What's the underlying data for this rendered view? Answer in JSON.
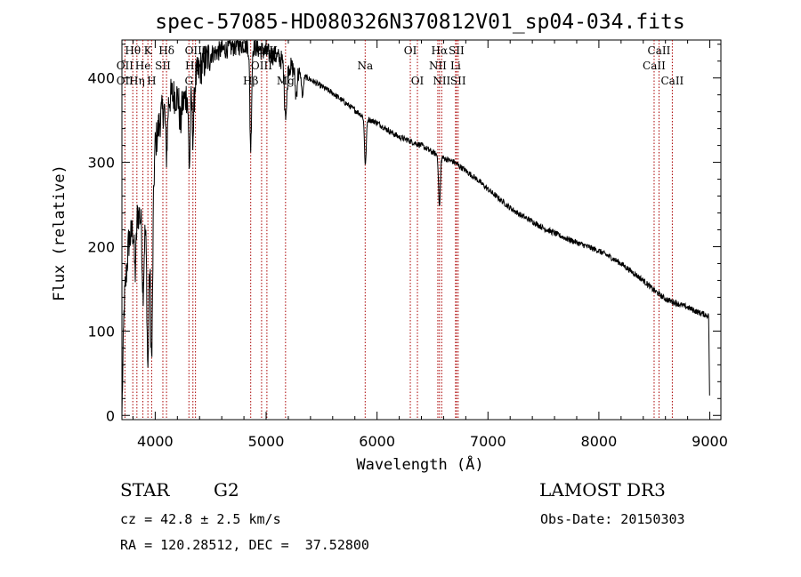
{
  "chart_data": {
    "type": "line",
    "title": "spec-57085-HD080326N370812V01_sp04-034.fits",
    "xlabel": "Wavelength (Å)",
    "ylabel": "Flux (relative)",
    "xlim": [
      3700,
      9100
    ],
    "ylim": [
      -5,
      445
    ],
    "xticks": [
      4000,
      5000,
      6000,
      7000,
      8000,
      9000
    ],
    "yticks": [
      0,
      100,
      200,
      300,
      400
    ],
    "line_color": "#000000",
    "marker_color": "#aa0000",
    "anchors": [
      [
        3700,
        0
      ],
      [
        3720,
        130
      ],
      [
        3760,
        205
      ],
      [
        3800,
        220
      ],
      [
        3840,
        240
      ],
      [
        3880,
        235
      ],
      [
        3920,
        215
      ],
      [
        3960,
        190
      ],
      [
        4000,
        320
      ],
      [
        4050,
        355
      ],
      [
        4100,
        370
      ],
      [
        4150,
        380
      ],
      [
        4200,
        378
      ],
      [
        4250,
        370
      ],
      [
        4300,
        385
      ],
      [
        4350,
        395
      ],
      [
        4400,
        410
      ],
      [
        4450,
        420
      ],
      [
        4500,
        428
      ],
      [
        4600,
        433
      ],
      [
        4700,
        437
      ],
      [
        4800,
        440
      ],
      [
        4900,
        437
      ],
      [
        5000,
        430
      ],
      [
        5100,
        425
      ],
      [
        5200,
        415
      ],
      [
        5300,
        405
      ],
      [
        5400,
        398
      ],
      [
        5500,
        390
      ],
      [
        5600,
        382
      ],
      [
        5700,
        372
      ],
      [
        5800,
        362
      ],
      [
        5900,
        352
      ],
      [
        6000,
        347
      ],
      [
        6100,
        338
      ],
      [
        6200,
        330
      ],
      [
        6300,
        325
      ],
      [
        6400,
        320
      ],
      [
        6500,
        312
      ],
      [
        6600,
        305
      ],
      [
        6700,
        300
      ],
      [
        6800,
        290
      ],
      [
        6900,
        280
      ],
      [
        7000,
        268
      ],
      [
        7100,
        257
      ],
      [
        7200,
        246
      ],
      [
        7300,
        237
      ],
      [
        7400,
        230
      ],
      [
        7500,
        222
      ],
      [
        7600,
        216
      ],
      [
        7700,
        210
      ],
      [
        7800,
        205
      ],
      [
        7900,
        200
      ],
      [
        8000,
        195
      ],
      [
        8100,
        188
      ],
      [
        8200,
        180
      ],
      [
        8300,
        170
      ],
      [
        8400,
        160
      ],
      [
        8500,
        148
      ],
      [
        8600,
        138
      ],
      [
        8700,
        133
      ],
      [
        8800,
        128
      ],
      [
        8900,
        122
      ],
      [
        8990,
        118
      ],
      [
        9000,
        0
      ]
    ],
    "absorption": [
      [
        3820,
        60
      ],
      [
        3890,
        80
      ],
      [
        3934,
        150
      ],
      [
        3969,
        150
      ],
      [
        4102,
        60
      ],
      [
        4227,
        30
      ],
      [
        4308,
        90
      ],
      [
        4341,
        60
      ],
      [
        4861,
        120
      ],
      [
        5169,
        40
      ],
      [
        5183,
        45
      ],
      [
        5270,
        30
      ],
      [
        5328,
        25
      ],
      [
        5895,
        55
      ],
      [
        6563,
        60
      ]
    ],
    "lines": [
      {
        "label": "Hθ",
        "x": 3798,
        "row": 1
      },
      {
        "label": "OII",
        "x": 3727,
        "row": 2
      },
      {
        "label": "OII",
        "x": 3727,
        "row": 3
      },
      {
        "label": "Hη",
        "x": 3835,
        "row": 3
      },
      {
        "label": "He",
        "x": 3889,
        "row": 2
      },
      {
        "label": "K",
        "x": 3934,
        "row": 1
      },
      {
        "label": "H",
        "x": 3968,
        "row": 3
      },
      {
        "label": "SII",
        "x": 4069,
        "row": 2
      },
      {
        "label": "Hδ",
        "x": 4102,
        "row": 1
      },
      {
        "label": "OIII",
        "x": 4363,
        "row": 1
      },
      {
        "label": "Hγ",
        "x": 4340,
        "row": 2
      },
      {
        "label": "G",
        "x": 4304,
        "row": 3
      },
      {
        "label": "OIII",
        "x": 5007,
        "row": 1
      },
      {
        "label": "OIII",
        "x": 4959,
        "row": 2
      },
      {
        "label": "Mg",
        "x": 5175,
        "row": 3
      },
      {
        "label": "Hβ",
        "x": 4861,
        "row": 3
      },
      {
        "label": "Na",
        "x": 5893,
        "row": 2
      },
      {
        "label": "OI",
        "x": 6300,
        "row": 1
      },
      {
        "label": "OI",
        "x": 6364,
        "row": 3
      },
      {
        "label": "Hα",
        "x": 6563,
        "row": 1
      },
      {
        "label": "NII",
        "x": 6548,
        "row": 2
      },
      {
        "label": "NII",
        "x": 6583,
        "row": 3
      },
      {
        "label": "SII",
        "x": 6716,
        "row": 1
      },
      {
        "label": "Li",
        "x": 6708,
        "row": 2
      },
      {
        "label": "SII",
        "x": 6731,
        "row": 3
      },
      {
        "label": "CaII",
        "x": 8542,
        "row": 1
      },
      {
        "label": "CaII",
        "x": 8498,
        "row": 2
      },
      {
        "label": "CaII",
        "x": 8662,
        "row": 3
      }
    ]
  },
  "info": {
    "class": "STAR",
    "subclass": "G2",
    "survey": "LAMOST DR3",
    "cz": "cz = 42.8 ± 2.5 km/s",
    "obs_date": "Obs-Date: 20150303",
    "coords": "RA = 120.28512, DEC =  37.52800"
  }
}
